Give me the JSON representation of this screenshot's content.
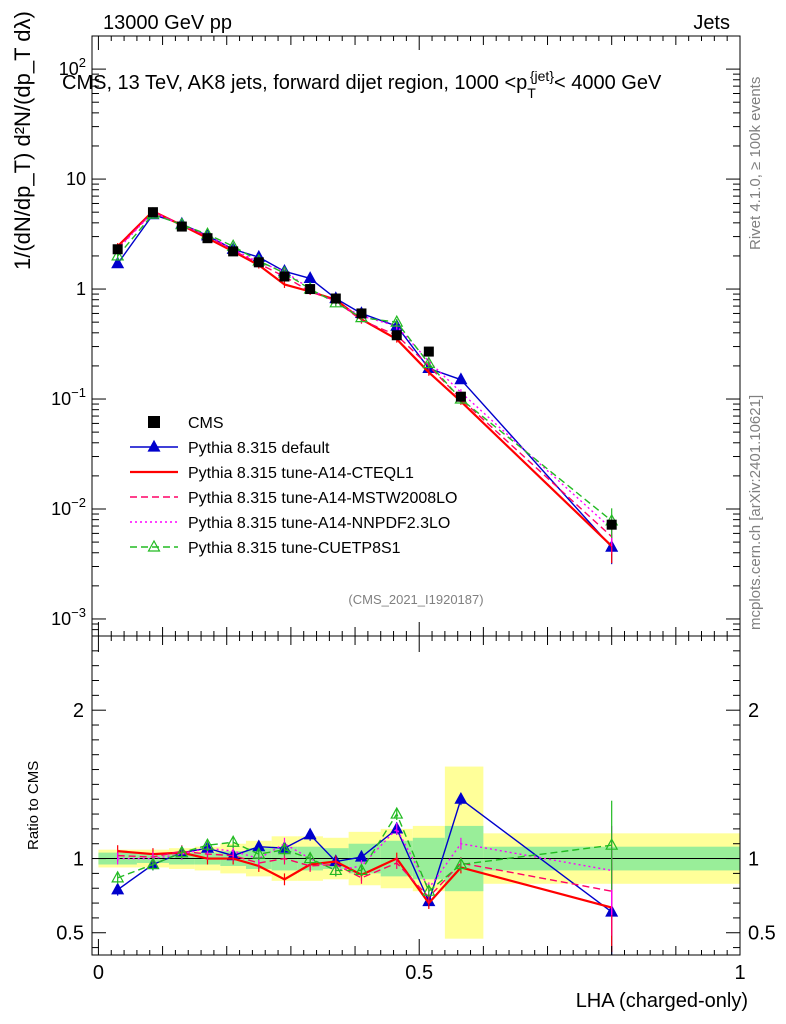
{
  "header": {
    "left": "13000 GeV pp",
    "right": "Jets",
    "title": "CMS, 13 TeV, AK8 jets, forward dijet region, 1000 <p_T^{jet}< 4000 GeV",
    "title_main": "CMS, 13 TeV, AK8 jets, forward dijet region, 1000 <p",
    "title_sup": "{jet}",
    "title_sub": "T",
    "title_end": "< 4000 GeV"
  },
  "side": {
    "rivet": "Rivet 4.1.0, ≥ 100k events",
    "mcplots": "mcplots.cern.ch [arXiv:2401.10621]"
  },
  "watermark": "(CMS_2021_I1920187)",
  "ylabel_top": "1/(dN/dp_T) d²N/(dp_T dλ)",
  "ylabel_bottom": "Ratio to CMS",
  "xlabel": "LHA (charged-only)",
  "chart_data": [
    {
      "type": "line",
      "panel": "main",
      "yscale": "log",
      "ylim": [
        0.0007,
        200
      ],
      "xlim": [
        -0.01,
        1.0
      ],
      "yticks": [
        {
          "value": 0.001,
          "base": "10",
          "exp": "−3"
        },
        {
          "value": 0.01,
          "base": "10",
          "exp": "−2"
        },
        {
          "value": 0.1,
          "base": "10",
          "exp": "−1"
        },
        {
          "value": 1,
          "base": "1",
          "exp": ""
        },
        {
          "value": 10,
          "base": "10",
          "exp": ""
        },
        {
          "value": 100,
          "base": "10",
          "exp": "2"
        }
      ],
      "x": [
        0.03,
        0.085,
        0.13,
        0.17,
        0.21,
        0.25,
        0.29,
        0.33,
        0.37,
        0.41,
        0.465,
        0.515,
        0.565,
        0.8
      ],
      "data": {
        "name": "CMS",
        "values": [
          2.3,
          5.0,
          3.7,
          2.9,
          2.2,
          1.75,
          1.3,
          1.0,
          0.82,
          0.6,
          0.38,
          0.27,
          0.105,
          0.0072
        ],
        "band": [
          [
            0.0,
            0.06
          ],
          [
            0.06,
            0.11
          ],
          [
            0.11,
            0.15
          ],
          [
            0.15,
            0.19
          ],
          [
            0.19,
            0.23
          ],
          [
            0.23,
            0.27
          ],
          [
            0.27,
            0.31
          ],
          [
            0.31,
            0.35
          ],
          [
            0.35,
            0.39
          ],
          [
            0.39,
            0.44
          ],
          [
            0.44,
            0.49
          ],
          [
            0.49,
            0.54
          ],
          [
            0.54,
            0.6
          ],
          [
            0.6,
            1.0
          ]
        ]
      },
      "series": [
        {
          "name": "Pythia 8.315 default",
          "color": "#0000cc",
          "style": "solid",
          "marker": "triangle-filled",
          "values": [
            1.7,
            4.75,
            3.9,
            3.05,
            2.3,
            1.95,
            1.45,
            1.25,
            0.82,
            0.6,
            0.46,
            0.19,
            0.15,
            0.0045
          ]
        },
        {
          "name": "Pythia 8.315 tune-A14-CTEQL1",
          "color": "#ff0000",
          "style": "solid",
          "marker": "none",
          "values": [
            2.45,
            5.1,
            3.8,
            2.9,
            2.2,
            1.65,
            1.1,
            0.95,
            0.8,
            0.53,
            0.35,
            0.175,
            0.095,
            0.0046
          ]
        },
        {
          "name": "Pythia 8.315 tune-A14-MSTW2008LO",
          "color": "#ff0066",
          "style": "dashed",
          "marker": "none",
          "values": [
            2.35,
            5.05,
            3.85,
            3.0,
            2.25,
            1.7,
            1.3,
            0.95,
            0.78,
            0.52,
            0.38,
            0.2,
            0.1,
            0.0056
          ]
        },
        {
          "name": "Pythia 8.315 tune-A14-NNPDF2.3LO",
          "color": "#ff00ff",
          "style": "dotted",
          "marker": "none",
          "values": [
            2.3,
            5.0,
            3.8,
            3.1,
            2.3,
            1.75,
            1.45,
            1.0,
            0.75,
            0.57,
            0.46,
            0.22,
            0.115,
            0.0066
          ]
        },
        {
          "name": "Pythia 8.315 tune-CUETP8S1",
          "color": "#22bb22",
          "style": "dashed",
          "marker": "triangle-open",
          "values": [
            2.0,
            4.8,
            3.85,
            3.15,
            2.45,
            1.8,
            1.4,
            1.0,
            0.75,
            0.55,
            0.5,
            0.21,
            0.1,
            0.0078
          ]
        }
      ]
    },
    {
      "type": "line",
      "panel": "ratio",
      "ylim": [
        0.35,
        2.5
      ],
      "xlim": [
        -0.01,
        1.0
      ],
      "ylabel": "Ratio to CMS",
      "xlabel": "LHA (charged-only)",
      "xticks": [
        {
          "value": 0,
          "label": "0"
        },
        {
          "value": 0.5,
          "label": "0.5"
        },
        {
          "value": 1,
          "label": "1"
        }
      ],
      "yticks": [
        {
          "value": 0.5,
          "label": "0.5"
        },
        {
          "value": 1,
          "label": "1"
        },
        {
          "value": 2,
          "label": "2"
        }
      ],
      "band_inner": [
        [
          0.96,
          1.04
        ],
        [
          0.97,
          1.03
        ],
        [
          0.96,
          1.04
        ],
        [
          0.96,
          1.04
        ],
        [
          0.95,
          1.05
        ],
        [
          0.93,
          1.07
        ],
        [
          0.92,
          1.08
        ],
        [
          0.92,
          1.08
        ],
        [
          0.93,
          1.07
        ],
        [
          0.9,
          1.1
        ],
        [
          0.88,
          1.12
        ],
        [
          0.86,
          1.14
        ],
        [
          0.78,
          1.22
        ],
        [
          0.92,
          1.08
        ]
      ],
      "band_outer": [
        [
          0.94,
          1.06
        ],
        [
          0.94,
          1.06
        ],
        [
          0.93,
          1.07
        ],
        [
          0.92,
          1.08
        ],
        [
          0.9,
          1.1
        ],
        [
          0.88,
          1.12
        ],
        [
          0.85,
          1.15
        ],
        [
          0.85,
          1.15
        ],
        [
          0.86,
          1.14
        ],
        [
          0.82,
          1.18
        ],
        [
          0.8,
          1.2
        ],
        [
          0.78,
          1.22
        ],
        [
          0.46,
          1.62
        ],
        [
          0.83,
          1.17
        ]
      ],
      "series": [
        {
          "name": "Pythia 8.315 default",
          "values": [
            0.79,
            0.96,
            1.04,
            1.07,
            1.02,
            1.08,
            1.07,
            1.16,
            0.98,
            1.01,
            1.2,
            0.71,
            1.4,
            0.64
          ]
        },
        {
          "name": "Pythia 8.315 tune-A14-CTEQL1",
          "values": [
            1.05,
            1.03,
            1.04,
            1.0,
            1.0,
            0.95,
            0.86,
            0.96,
            0.98,
            0.89,
            1.0,
            0.7,
            0.94,
            0.67
          ]
        },
        {
          "name": "Pythia 8.315 tune-A14-MSTW2008LO",
          "values": [
            1.02,
            1.01,
            1.05,
            1.03,
            1.02,
            0.97,
            1.0,
            0.95,
            0.96,
            0.87,
            0.97,
            0.74,
            0.97,
            0.78
          ]
        },
        {
          "name": "Pythia 8.315 tune-A14-NNPDF2.3LO",
          "values": [
            1.0,
            1.0,
            1.03,
            1.07,
            1.05,
            1.0,
            1.1,
            1.0,
            0.92,
            0.95,
            1.2,
            0.8,
            1.1,
            0.92
          ]
        },
        {
          "name": "Pythia 8.315 tune-CUETP8S1",
          "values": [
            0.87,
            0.96,
            1.04,
            1.09,
            1.11,
            1.03,
            1.06,
            1.0,
            0.92,
            0.92,
            1.3,
            0.78,
            0.96,
            1.09
          ]
        }
      ]
    }
  ]
}
